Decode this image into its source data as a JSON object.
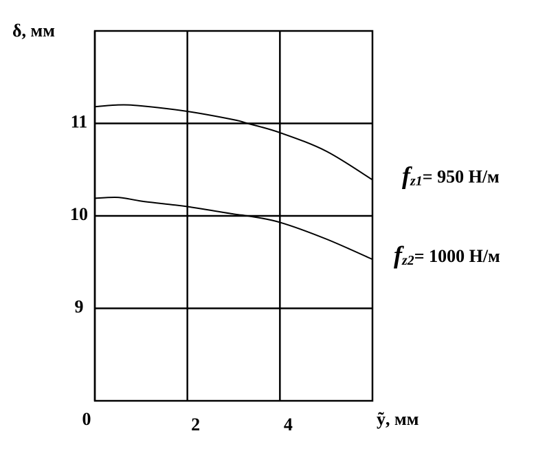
{
  "chart_data": {
    "type": "line",
    "y_label": "δ, мм",
    "x_label": "ỹ, мм",
    "xlim": [
      0,
      6
    ],
    "ylim": [
      8,
      12
    ],
    "xticks": [
      0,
      2,
      4
    ],
    "yticks": [
      9,
      10,
      11
    ],
    "grid": true,
    "series": [
      {
        "name": "fz1= 950 Н/м",
        "color": "#000000",
        "x": [
          0,
          0.5,
          1,
          2,
          3,
          3.3,
          4,
          5,
          6
        ],
        "values": [
          11.18,
          11.2,
          11.19,
          11.13,
          11.04,
          11.0,
          10.9,
          10.7,
          10.39
        ]
      },
      {
        "name": "fz2= 1000 Н/м",
        "color": "#000000",
        "x": [
          0,
          0.5,
          1,
          1.5,
          2,
          3,
          3.3,
          4,
          5,
          6
        ],
        "values": [
          10.19,
          10.2,
          10.16,
          10.13,
          10.1,
          10.02,
          10.0,
          9.93,
          9.75,
          9.53
        ]
      }
    ]
  }
}
